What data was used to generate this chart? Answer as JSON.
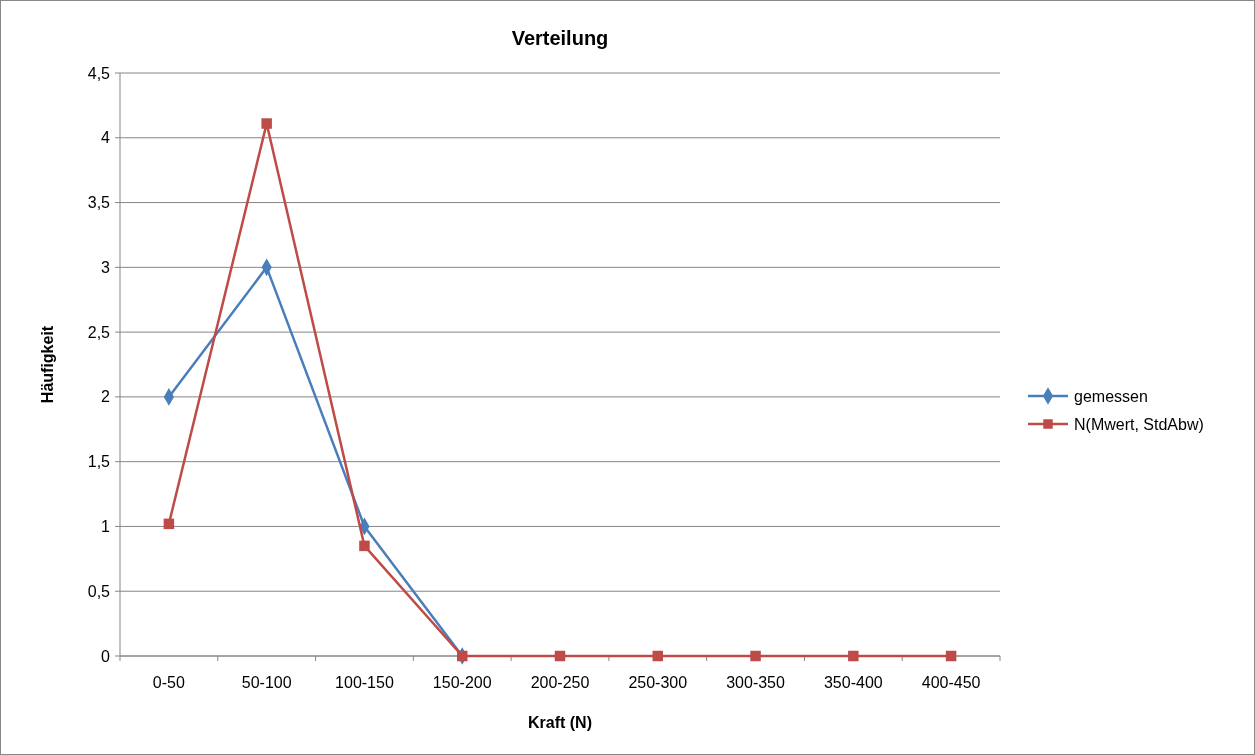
{
  "chart_data": {
    "type": "line",
    "title": "Verteilung",
    "xlabel": "Kraft (N)",
    "ylabel": "Häufigkeit",
    "categories": [
      "0-50",
      "50-100",
      "100-150",
      "150-200",
      "200-250",
      "250-300",
      "300-350",
      "350-400",
      "400-450"
    ],
    "series": [
      {
        "name": "gemessen",
        "color": "#4a7ebb",
        "marker": "diamond",
        "values": [
          2,
          3,
          1,
          0,
          null,
          null,
          null,
          null,
          null
        ]
      },
      {
        "name": "N(Mwert, StdAbw)",
        "color": "#be4b48",
        "marker": "square",
        "values": [
          1.02,
          4.11,
          0.85,
          0,
          0,
          0,
          0,
          0,
          0
        ]
      }
    ],
    "ylim": [
      0,
      4.5
    ],
    "yticks": [
      0,
      {
        "value": 0.5,
        "label": "0,5"
      },
      1,
      {
        "value": 1.5,
        "label": "1,5"
      },
      2,
      {
        "value": 2.5,
        "label": "2,5"
      },
      3,
      {
        "value": 3.5,
        "label": "3,5"
      },
      4,
      {
        "value": 4.5,
        "label": "4,5"
      }
    ],
    "grid": "y",
    "legend": "right",
    "line_style": "solid"
  }
}
